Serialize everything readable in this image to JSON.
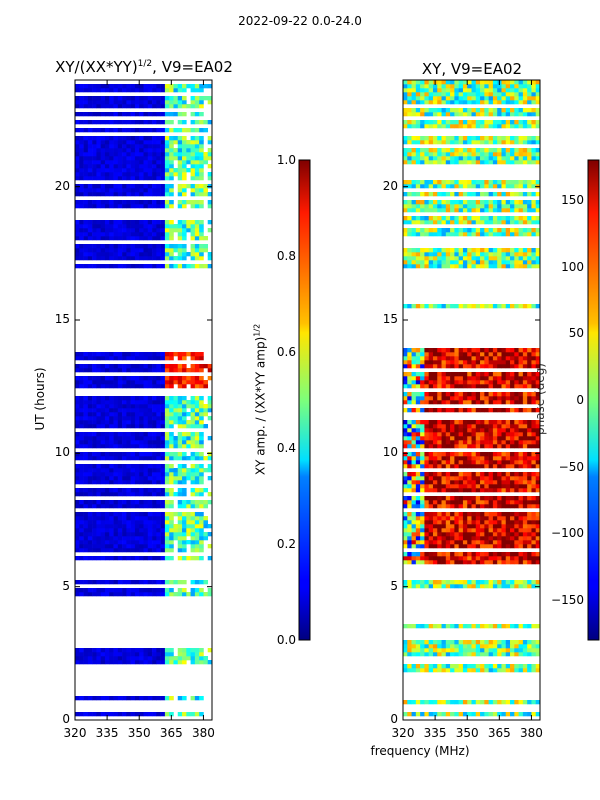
{
  "figure": {
    "suptitle": "2022-09-22 0.0-24.0",
    "xlabel_shared": "frequency (MHz)"
  },
  "chart_data": [
    {
      "type": "heatmap",
      "title": "XY/(XX*YY)",
      "title_exp": "1/2",
      "title_suffix": ", V9=EA02",
      "xlabel": "",
      "ylabel": "UT (hours)",
      "xlim": [
        320,
        384
      ],
      "ylim": [
        0,
        24
      ],
      "xticks": [
        320,
        335,
        350,
        365,
        380
      ],
      "yticks": [
        0,
        5,
        10,
        15,
        20
      ],
      "colormap": "jet",
      "colorbar": {
        "label": "XY amp. / (XX*YY amp)",
        "label_exp": "1/2",
        "range": [
          0.0,
          1.0
        ],
        "ticks": [
          "0.0",
          "0.2",
          "0.4",
          "0.6",
          "0.8",
          "1.0"
        ]
      },
      "data_bands_hours": [
        [
          0.2,
          0.35
        ],
        [
          0.75,
          0.95
        ],
        [
          2.1,
          2.7
        ],
        [
          4.6,
          5.2
        ],
        [
          5.7,
          14.0
        ],
        [
          16.9,
          18.8
        ],
        [
          19.2,
          21.9
        ],
        [
          22.1,
          23.9
        ]
      ],
      "typical_values": {
        "freq_320_361": 0.05,
        "freq_362_383": 0.45,
        "peak_13h": 0.85
      }
    },
    {
      "type": "heatmap",
      "title": "XY, V9=EA02",
      "xlabel": "frequency (MHz)",
      "ylabel": "",
      "xlim": [
        320,
        384
      ],
      "ylim": [
        0,
        24
      ],
      "xticks": [
        320,
        335,
        350,
        365,
        380
      ],
      "yticks": [
        0,
        5,
        10,
        15,
        20
      ],
      "colormap": "jet",
      "colorbar": {
        "label": "phase (deg)",
        "range": [
          -180,
          180
        ],
        "ticks": [
          "−150",
          "−100",
          "−50",
          "0",
          "50",
          "100",
          "150"
        ]
      },
      "data_bands_hours": [
        [
          0.2,
          0.8
        ],
        [
          1.6,
          3.0
        ],
        [
          3.5,
          3.8
        ],
        [
          5.0,
          5.2
        ],
        [
          5.8,
          14.0
        ],
        [
          15.4,
          15.6
        ],
        [
          16.9,
          20.2
        ],
        [
          20.9,
          21.9
        ],
        [
          22.2,
          24.0
        ]
      ],
      "typical_values": {
        "night_deg": 0,
        "day_deg": 150
      }
    }
  ]
}
